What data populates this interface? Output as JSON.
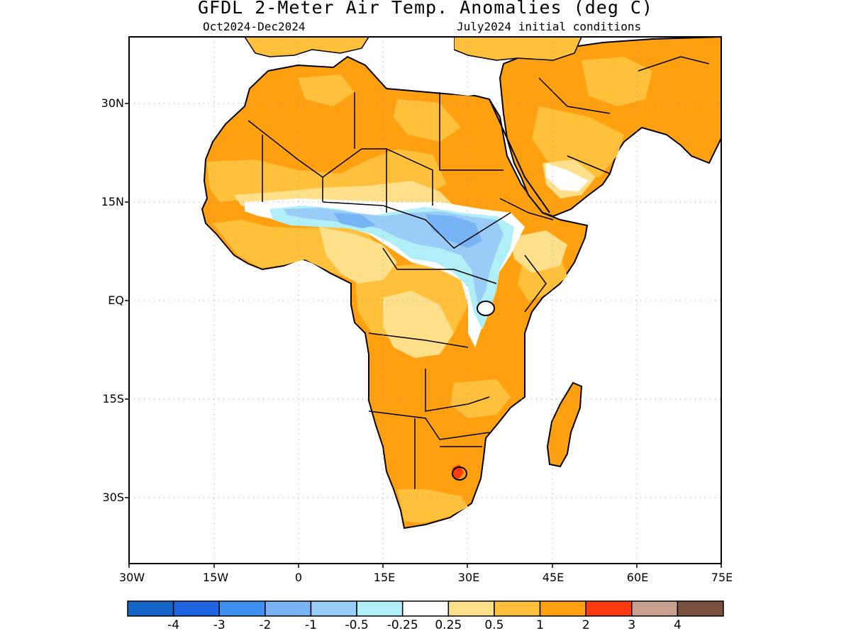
{
  "title": "GFDL 2-Meter Air Temp. Anomalies (deg C)",
  "subtitle_left": "Oct2024-Dec2024",
  "subtitle_right": "July2024 initial conditions",
  "map": {
    "region": "Africa and Arabian Peninsula",
    "lon_range": [
      -30,
      75
    ],
    "lat_range": [
      -40,
      40
    ],
    "lat_ticks": [
      "30N",
      "15N",
      "EQ",
      "15S",
      "30S"
    ],
    "lon_ticks": [
      "30W",
      "15W",
      "0",
      "15E",
      "30E",
      "45E",
      "60E",
      "75E"
    ],
    "grid": true
  },
  "colorbar": {
    "colors": [
      "#1565c8",
      "#1e63e0",
      "#3d8ff0",
      "#77b3f5",
      "#99cdf7",
      "#b0eff8",
      "#ffffff",
      "#ffe08a",
      "#ffc03c",
      "#ffa010",
      "#ff3a10",
      "#c8a090",
      "#7a5040"
    ],
    "labels": [
      "-4",
      "-3",
      "-2",
      "-1",
      "-0.5",
      "-0.25",
      "0.25",
      "0.5",
      "1",
      "2",
      "3",
      "4"
    ]
  },
  "legend_note": "deg C"
}
